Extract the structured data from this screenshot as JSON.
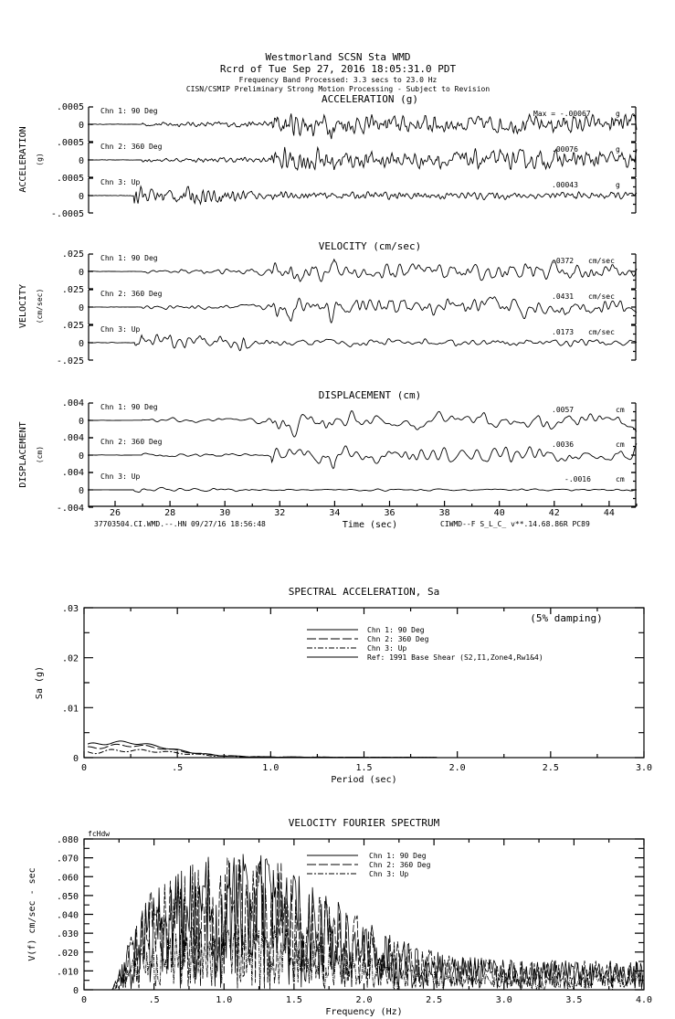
{
  "header": {
    "line1": "Westmorland    SCSN Sta WMD",
    "line2": "Rcrd of Tue Sep 27, 2016 18:05:31.0 PDT",
    "line3": "Frequency Band Processed: 3.3 secs to 23.0 Hz",
    "line4": "CISN/CSMIP Preliminary Strong Motion Processing - Subject to Revision"
  },
  "footer": {
    "left": "37703504.CI.WMD.--.HN 09/27/16 18:56:48",
    "right": "CIWMD--F  S_L_C_  v**.14.68.86R PC89"
  },
  "chart_data": [
    {
      "type": "line",
      "title": "ACCELERATION (g)",
      "ylabel": "ACCELERATION",
      "yunit": "(g)",
      "xlabel": "Time (sec)",
      "xlim": [
        25,
        45
      ],
      "xticks": [
        "26",
        "28",
        "30",
        "32",
        "34",
        "36",
        "38",
        "40",
        "42",
        "44"
      ],
      "ytick_labels": [
        ".0005",
        "0",
        "-.0005"
      ],
      "ylim": [
        -0.0005,
        0.0005
      ],
      "channels": [
        {
          "name": "Chn 1: 90 Deg",
          "max_label": "Max =   -.00067",
          "unit": "g",
          "peak": -0.00067
        },
        {
          "name": "Chn 2: 360 Deg",
          "max_label": ".00076",
          "unit": "g",
          "peak": 0.00076
        },
        {
          "name": "Chn 3: Up",
          "max_label": ".00043",
          "unit": "g",
          "peak": 0.00043
        }
      ]
    },
    {
      "type": "line",
      "title": "VELOCITY (cm/sec)",
      "ylabel": "VELOCITY",
      "yunit": "(cm/sec)",
      "xlim": [
        25,
        45
      ],
      "ytick_labels": [
        ".025",
        "0",
        "-.025"
      ],
      "ylim": [
        -0.025,
        0.025
      ],
      "channels": [
        {
          "name": "Chn 1: 90 Deg",
          "max_label": ".0372",
          "unit": "cm/sec",
          "peak": 0.0372
        },
        {
          "name": "Chn 2: 360 Deg",
          "max_label": ".0431",
          "unit": "cm/sec",
          "peak": 0.0431
        },
        {
          "name": "Chn 3: Up",
          "max_label": ".0173",
          "unit": "cm/sec",
          "peak": 0.0173
        }
      ]
    },
    {
      "type": "line",
      "title": "DISPLACEMENT (cm)",
      "ylabel": "DISPLACEMENT",
      "yunit": "(cm)",
      "xlim": [
        25,
        45
      ],
      "ytick_labels": [
        ".004",
        "0",
        "-.004"
      ],
      "ylim": [
        -0.004,
        0.004
      ],
      "channels": [
        {
          "name": "Chn 1: 90 Deg",
          "max_label": ".0057",
          "unit": "cm",
          "peak": 0.0057
        },
        {
          "name": "Chn 2: 360 Deg",
          "max_label": ".0036",
          "unit": "cm",
          "peak": 0.0036
        },
        {
          "name": "Chn 3: Up",
          "max_label": "-.0016",
          "unit": "cm",
          "peak": -0.0016
        }
      ]
    },
    {
      "type": "line",
      "title": "SPECTRAL ACCELERATION, Sa",
      "annotation": "(5% damping)",
      "xlabel": "Period (sec)",
      "ylabel": "Sa (g)",
      "xlim": [
        0,
        3.0
      ],
      "ylim": [
        0,
        0.03
      ],
      "xticks": [
        "0",
        ".5",
        "1.0",
        "1.5",
        "2.0",
        "2.5",
        "3.0"
      ],
      "yticks": [
        "0",
        ".01",
        ".02",
        ".03"
      ],
      "legend": [
        "Chn 1: 90 Deg",
        "Chn 2: 360 Deg",
        "Chn 3: Up",
        "Ref: 1991 Base Shear (S2,I1,Zone4,Rw1&4)"
      ],
      "legend_placement": "top-center",
      "peaks": [
        {
          "series": "Chn 1: 90 Deg",
          "x": 0.2,
          "y": 0.0028
        },
        {
          "series": "Chn 2: 360 Deg",
          "x": 0.25,
          "y": 0.0022
        },
        {
          "series": "Chn 3: Up",
          "x": 0.15,
          "y": 0.0012
        }
      ]
    },
    {
      "type": "line",
      "title": "VELOCITY FOURIER SPECTRUM",
      "annotation": "fcHdw",
      "xlabel": "Frequency (Hz)",
      "ylabel": "V(f)   cm/sec - sec",
      "xlim": [
        0,
        4.0
      ],
      "ylim": [
        0,
        0.08
      ],
      "xticks": [
        "0",
        ".5",
        "1.0",
        "1.5",
        "2.0",
        "2.5",
        "3.0",
        "3.5",
        "4.0"
      ],
      "yticks": [
        "0",
        ".010",
        ".020",
        ".030",
        ".040",
        ".050",
        ".060",
        ".070",
        ".080"
      ],
      "legend": [
        "Chn 1: 90 Deg",
        "Chn 2: 360 Deg",
        "Chn 3: Up"
      ],
      "legend_placement": "top-right",
      "peaks": [
        {
          "x": 0.85,
          "y": 0.07
        },
        {
          "x": 0.93,
          "y": 0.064
        },
        {
          "x": 1.4,
          "y": 0.059
        },
        {
          "x": 1.67,
          "y": 0.057
        }
      ]
    }
  ]
}
